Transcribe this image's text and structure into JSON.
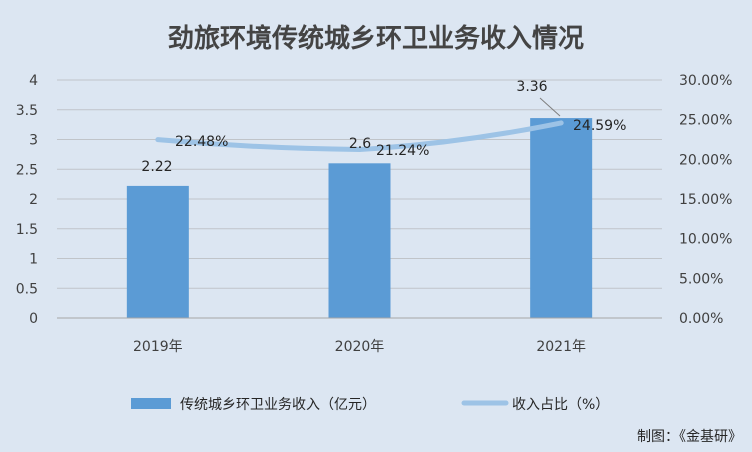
{
  "chart_data": {
    "type": "bar",
    "title": "劲旅环境传统城乡环卫业务收入情况",
    "categories": [
      "2019年",
      "2020年",
      "2021年"
    ],
    "series": [
      {
        "name": "传统城乡环卫业务收入（亿元）",
        "type": "bar",
        "axis": "left",
        "values": [
          2.22,
          2.6,
          3.36
        ],
        "labels": [
          "2.22",
          "2.6",
          "3.36"
        ],
        "color": "#5b9bd5"
      },
      {
        "name": "收入占比（%）",
        "type": "line",
        "axis": "right",
        "values": [
          22.48,
          21.24,
          24.59
        ],
        "labels": [
          "22.48%",
          "21.24%",
          "24.59%"
        ],
        "color": "#9dc3e6"
      }
    ],
    "y_left": {
      "min": 0,
      "max": 4,
      "ticks": [
        "0",
        "0.5",
        "1",
        "1.5",
        "2",
        "2.5",
        "3",
        "3.5",
        "4"
      ]
    },
    "y_right": {
      "min": 0,
      "max": 30,
      "ticks": [
        "0.00%",
        "5.00%",
        "10.00%",
        "15.00%",
        "20.00%",
        "25.00%",
        "30.00%"
      ]
    },
    "grid": true,
    "legend_position": "bottom",
    "credit": "制图：《金基研》"
  }
}
